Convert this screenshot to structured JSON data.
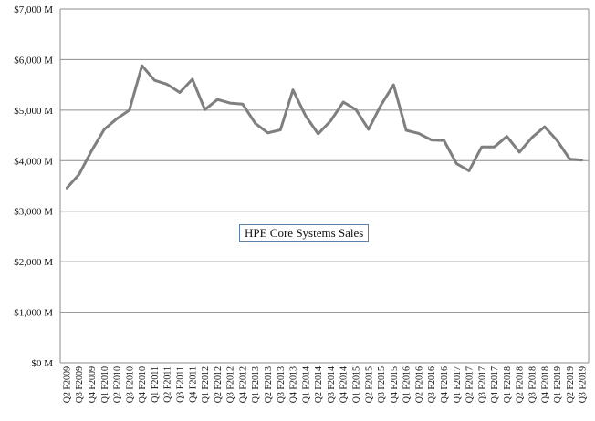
{
  "chart_data": {
    "type": "line",
    "title": "",
    "xlabel": "",
    "ylabel": "",
    "ylim": [
      0,
      7000
    ],
    "yticks": [
      0,
      1000,
      2000,
      3000,
      4000,
      5000,
      6000,
      7000
    ],
    "ytick_labels": [
      "$0 M",
      "$1,000 M",
      "$2,000 M",
      "$3,000 M",
      "$4,000 M",
      "$5,000 M",
      "$6,000 M",
      "$7,000 M"
    ],
    "grid": true,
    "legend_position": "center",
    "line_color": "#7f7f7f",
    "categories": [
      "Q2 F2009",
      "Q3 F2009",
      "Q4 F2009",
      "Q1 F2010",
      "Q2 F2010",
      "Q3 F2010",
      "Q4 F2010",
      "Q1 F2011",
      "Q2 F2011",
      "Q3 F2011",
      "Q4 F2011",
      "Q1 F2012",
      "Q2 F2012",
      "Q3 F2012",
      "Q4 F2012",
      "Q1 F2013",
      "Q2 F2013",
      "Q3 F2013",
      "Q4 F2013",
      "Q1 F2014",
      "Q2 F2014",
      "Q3 F2014",
      "Q4 F2014",
      "Q1 F2015",
      "Q2 F2015",
      "Q3 F2015",
      "Q4 F2015",
      "Q1 F2016",
      "Q2 F2016",
      "Q3 F2016",
      "Q4 F2016",
      "Q1 F2017",
      "Q2 F2017",
      "Q3 F2017",
      "Q4 F2017",
      "Q1 F2018",
      "Q2 F2018",
      "Q3 F2018",
      "Q4 F2018",
      "Q1 F2019",
      "Q2 F2019",
      "Q3 F2019"
    ],
    "series": [
      {
        "name": "HPE Core Systems Sales",
        "values": [
          3450,
          3730,
          4200,
          4620,
          4830,
          5000,
          5880,
          5590,
          5510,
          5350,
          5610,
          5010,
          5210,
          5140,
          5120,
          4740,
          4550,
          4610,
          5400,
          4890,
          4530,
          4790,
          5160,
          5010,
          4620,
          5100,
          5500,
          4600,
          4540,
          4410,
          4400,
          3940,
          3800,
          4270,
          4270,
          4480,
          4170,
          4460,
          4670,
          4400,
          4030,
          4010
        ]
      }
    ]
  }
}
